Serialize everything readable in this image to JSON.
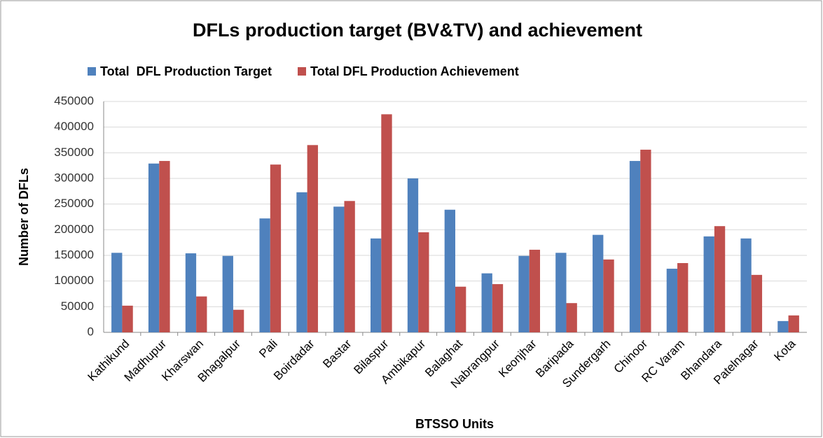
{
  "chart_data": {
    "type": "bar",
    "title": "DFLs production target (BV&TV) and achievement",
    "x_label": "BTSSO Units",
    "y_label": "Number of DFLs",
    "categories": [
      "Kathikund",
      "Madhupur",
      "Kharswan",
      "Bhagalpur",
      "Pali",
      "Boirdadar",
      "Bastar",
      "Bilaspur",
      "Ambikapur",
      "Balaghat",
      "Nabrangpur",
      "Keonjhar",
      "Baripada",
      "Sundergarh",
      "Chinoor",
      "RC Varam",
      "Bhandara",
      "Patelnagar",
      "Kota"
    ],
    "series": [
      {
        "name": "Total  DFL Production Target",
        "color": "#4f81bd",
        "values": [
          155000,
          329000,
          154000,
          149000,
          222000,
          273000,
          245000,
          183000,
          300000,
          239000,
          115000,
          149000,
          155000,
          190000,
          334000,
          124000,
          187000,
          183000,
          22000
        ]
      },
      {
        "name": "Total DFL Production Achievement",
        "color": "#c0504d",
        "values": [
          52000,
          334000,
          70000,
          44000,
          327000,
          365000,
          256000,
          425000,
          195000,
          89000,
          94000,
          161000,
          57000,
          142000,
          356000,
          135000,
          207000,
          112000,
          33000
        ]
      }
    ],
    "ylim": [
      0,
      450000
    ],
    "yticks": [
      0,
      50000,
      100000,
      150000,
      200000,
      250000,
      300000,
      350000,
      400000,
      450000
    ],
    "grid": true,
    "legend": "top"
  }
}
